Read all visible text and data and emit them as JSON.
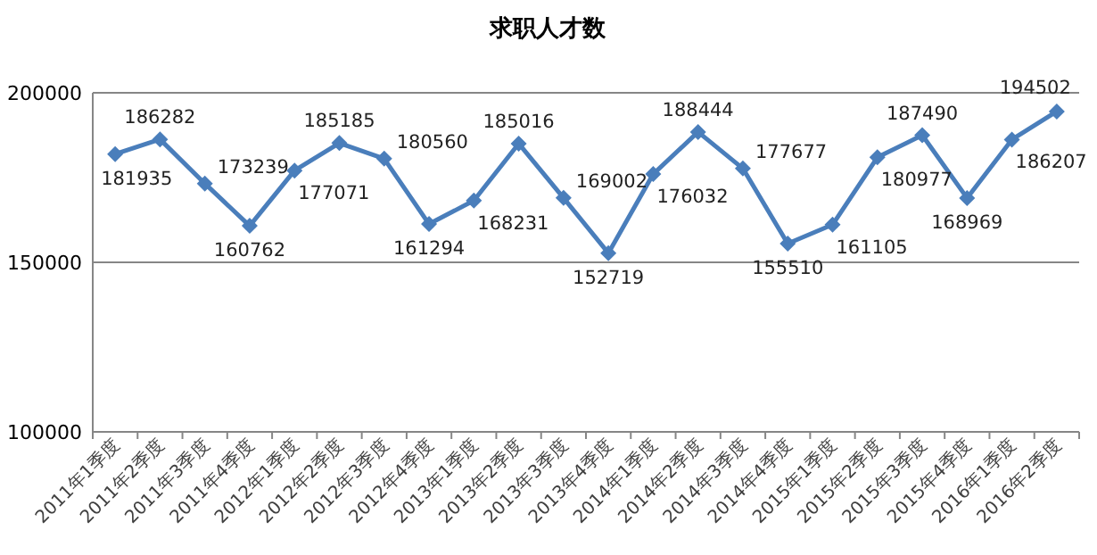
{
  "chart_data": {
    "type": "line",
    "title": "求职人才数",
    "categories": [
      "2011年1季度",
      "2011年2季度",
      "2011年3季度",
      "2011年4季度",
      "2012年1季度",
      "2012年2季度",
      "2012年3季度",
      "2012年4季度",
      "2013年1季度",
      "2013年2季度",
      "2013年3季度",
      "2013年4季度",
      "2014年1季度",
      "2014年2季度",
      "2014年3季度",
      "2014年4季度",
      "2015年1季度",
      "2015年2季度",
      "2015年3季度",
      "2015年4季度",
      "2016年1季度",
      "2016年2季度"
    ],
    "series": [
      {
        "color": "#4a7ebb",
        "values": [
          181935,
          186282,
          173239,
          160762,
          177071,
          185185,
          180560,
          161294,
          168231,
          185016,
          169002,
          152719,
          176032,
          188444,
          177677,
          155510,
          161105,
          180977,
          187490,
          168969,
          186207,
          194502
        ]
      }
    ],
    "ylim": [
      100000,
      200000
    ],
    "yticks": [
      100000,
      150000,
      200000
    ],
    "grid": "y",
    "marker": "diamond",
    "line_style": "solid",
    "data_labels": true
  }
}
